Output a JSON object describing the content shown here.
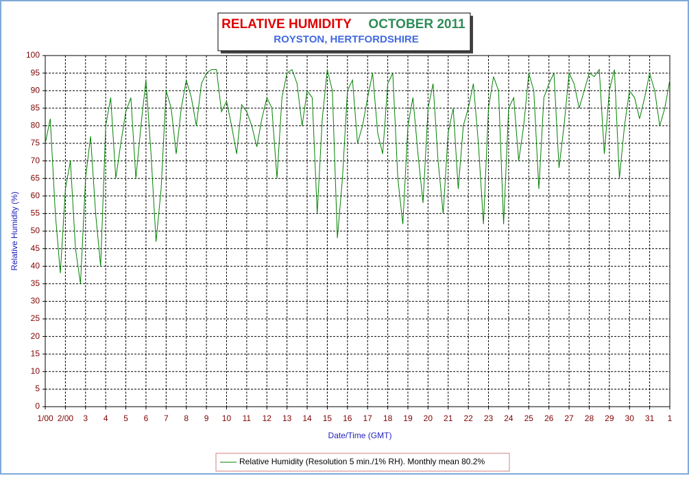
{
  "chart_data": {
    "type": "line",
    "title": "RELATIVE HUMIDITY",
    "title_period": "OCTOBER 2011",
    "subtitle": "ROYSTON, HERTFORDSHIRE",
    "y_label": "Relative Humidity (%)",
    "x_label": "Date/Time (GMT)",
    "grid": true,
    "legend": "bottom",
    "ylim": [
      0,
      100
    ],
    "yticks": [
      0,
      5,
      10,
      15,
      20,
      25,
      30,
      35,
      40,
      45,
      50,
      55,
      60,
      65,
      70,
      75,
      80,
      85,
      90,
      95,
      100
    ],
    "xlim": [
      0,
      31
    ],
    "xticks": [
      {
        "value": 0,
        "label": "1/00"
      },
      {
        "value": 1,
        "label": "2/00"
      },
      {
        "value": 2,
        "label": "3"
      },
      {
        "value": 3,
        "label": "4"
      },
      {
        "value": 4,
        "label": "5"
      },
      {
        "value": 5,
        "label": "6"
      },
      {
        "value": 6,
        "label": "7"
      },
      {
        "value": 7,
        "label": "8"
      },
      {
        "value": 8,
        "label": "9"
      },
      {
        "value": 9,
        "label": "10"
      },
      {
        "value": 10,
        "label": "11"
      },
      {
        "value": 11,
        "label": "12"
      },
      {
        "value": 12,
        "label": "13"
      },
      {
        "value": 13,
        "label": "14"
      },
      {
        "value": 14,
        "label": "15"
      },
      {
        "value": 15,
        "label": "16"
      },
      {
        "value": 16,
        "label": "17"
      },
      {
        "value": 17,
        "label": "18"
      },
      {
        "value": 18,
        "label": "19"
      },
      {
        "value": 19,
        "label": "20"
      },
      {
        "value": 20,
        "label": "21"
      },
      {
        "value": 21,
        "label": "22"
      },
      {
        "value": 22,
        "label": "23"
      },
      {
        "value": 23,
        "label": "24"
      },
      {
        "value": 24,
        "label": "25"
      },
      {
        "value": 25,
        "label": "26"
      },
      {
        "value": 26,
        "label": "27"
      },
      {
        "value": 27,
        "label": "28"
      },
      {
        "value": 28,
        "label": "29"
      },
      {
        "value": 29,
        "label": "30"
      },
      {
        "value": 30,
        "label": "31"
      },
      {
        "value": 31,
        "label": "1"
      }
    ],
    "x": [
      0,
      0.25,
      0.5,
      0.75,
      1,
      1.25,
      1.5,
      1.75,
      2,
      2.25,
      2.5,
      2.75,
      3,
      3.25,
      3.5,
      3.75,
      4,
      4.25,
      4.5,
      4.75,
      5,
      5.25,
      5.5,
      5.75,
      6,
      6.25,
      6.5,
      6.75,
      7,
      7.25,
      7.5,
      7.75,
      8,
      8.25,
      8.5,
      8.75,
      9,
      9.25,
      9.5,
      9.75,
      10,
      10.25,
      10.5,
      10.75,
      11,
      11.25,
      11.5,
      11.75,
      12,
      12.25,
      12.5,
      12.75,
      13,
      13.25,
      13.5,
      13.75,
      14,
      14.25,
      14.5,
      14.75,
      15,
      15.25,
      15.5,
      15.75,
      16,
      16.25,
      16.5,
      16.75,
      17,
      17.25,
      17.5,
      17.75,
      18,
      18.25,
      18.5,
      18.75,
      19,
      19.25,
      19.5,
      19.75,
      20,
      20.25,
      20.5,
      20.75,
      21,
      21.25,
      21.5,
      21.75,
      22,
      22.25,
      22.5,
      22.75,
      23,
      23.25,
      23.5,
      23.75,
      24,
      24.25,
      24.5,
      24.75,
      25,
      25.25,
      25.5,
      25.75,
      26,
      26.25,
      26.5,
      26.75,
      27,
      27.25,
      27.5,
      27.75,
      28,
      28.25,
      28.5,
      28.75,
      29,
      29.25,
      29.5,
      29.75,
      30,
      30.25,
      30.5,
      30.75,
      31
    ],
    "series": [
      {
        "name": "Relative Humidity (Resolution 5 min./1% RH). Monthly mean 80.2%",
        "color": "#008000",
        "values": [
          75,
          82,
          55,
          38,
          62,
          70,
          45,
          35,
          65,
          77,
          55,
          40,
          80,
          88,
          65,
          75,
          84,
          88,
          65,
          80,
          93,
          72,
          47,
          62,
          90,
          85,
          72,
          85,
          93,
          88,
          80,
          92,
          95,
          96,
          96,
          84,
          87,
          80,
          72,
          86,
          84,
          80,
          74,
          82,
          88,
          85,
          65,
          88,
          95,
          96,
          92,
          80,
          90,
          88,
          55,
          82,
          96,
          90,
          48,
          65,
          90,
          93,
          75,
          80,
          88,
          95,
          78,
          72,
          92,
          95,
          65,
          52,
          80,
          88,
          72,
          58,
          85,
          92,
          70,
          55,
          78,
          85,
          62,
          80,
          85,
          92,
          75,
          52,
          85,
          94,
          90,
          52,
          85,
          88,
          70,
          80,
          95,
          90,
          62,
          88,
          92,
          95,
          68,
          80,
          95,
          92,
          85,
          90,
          95,
          94,
          96,
          72,
          90,
          96,
          65,
          80,
          90,
          88,
          82,
          88,
          95,
          90,
          80,
          85,
          93
        ]
      }
    ]
  }
}
